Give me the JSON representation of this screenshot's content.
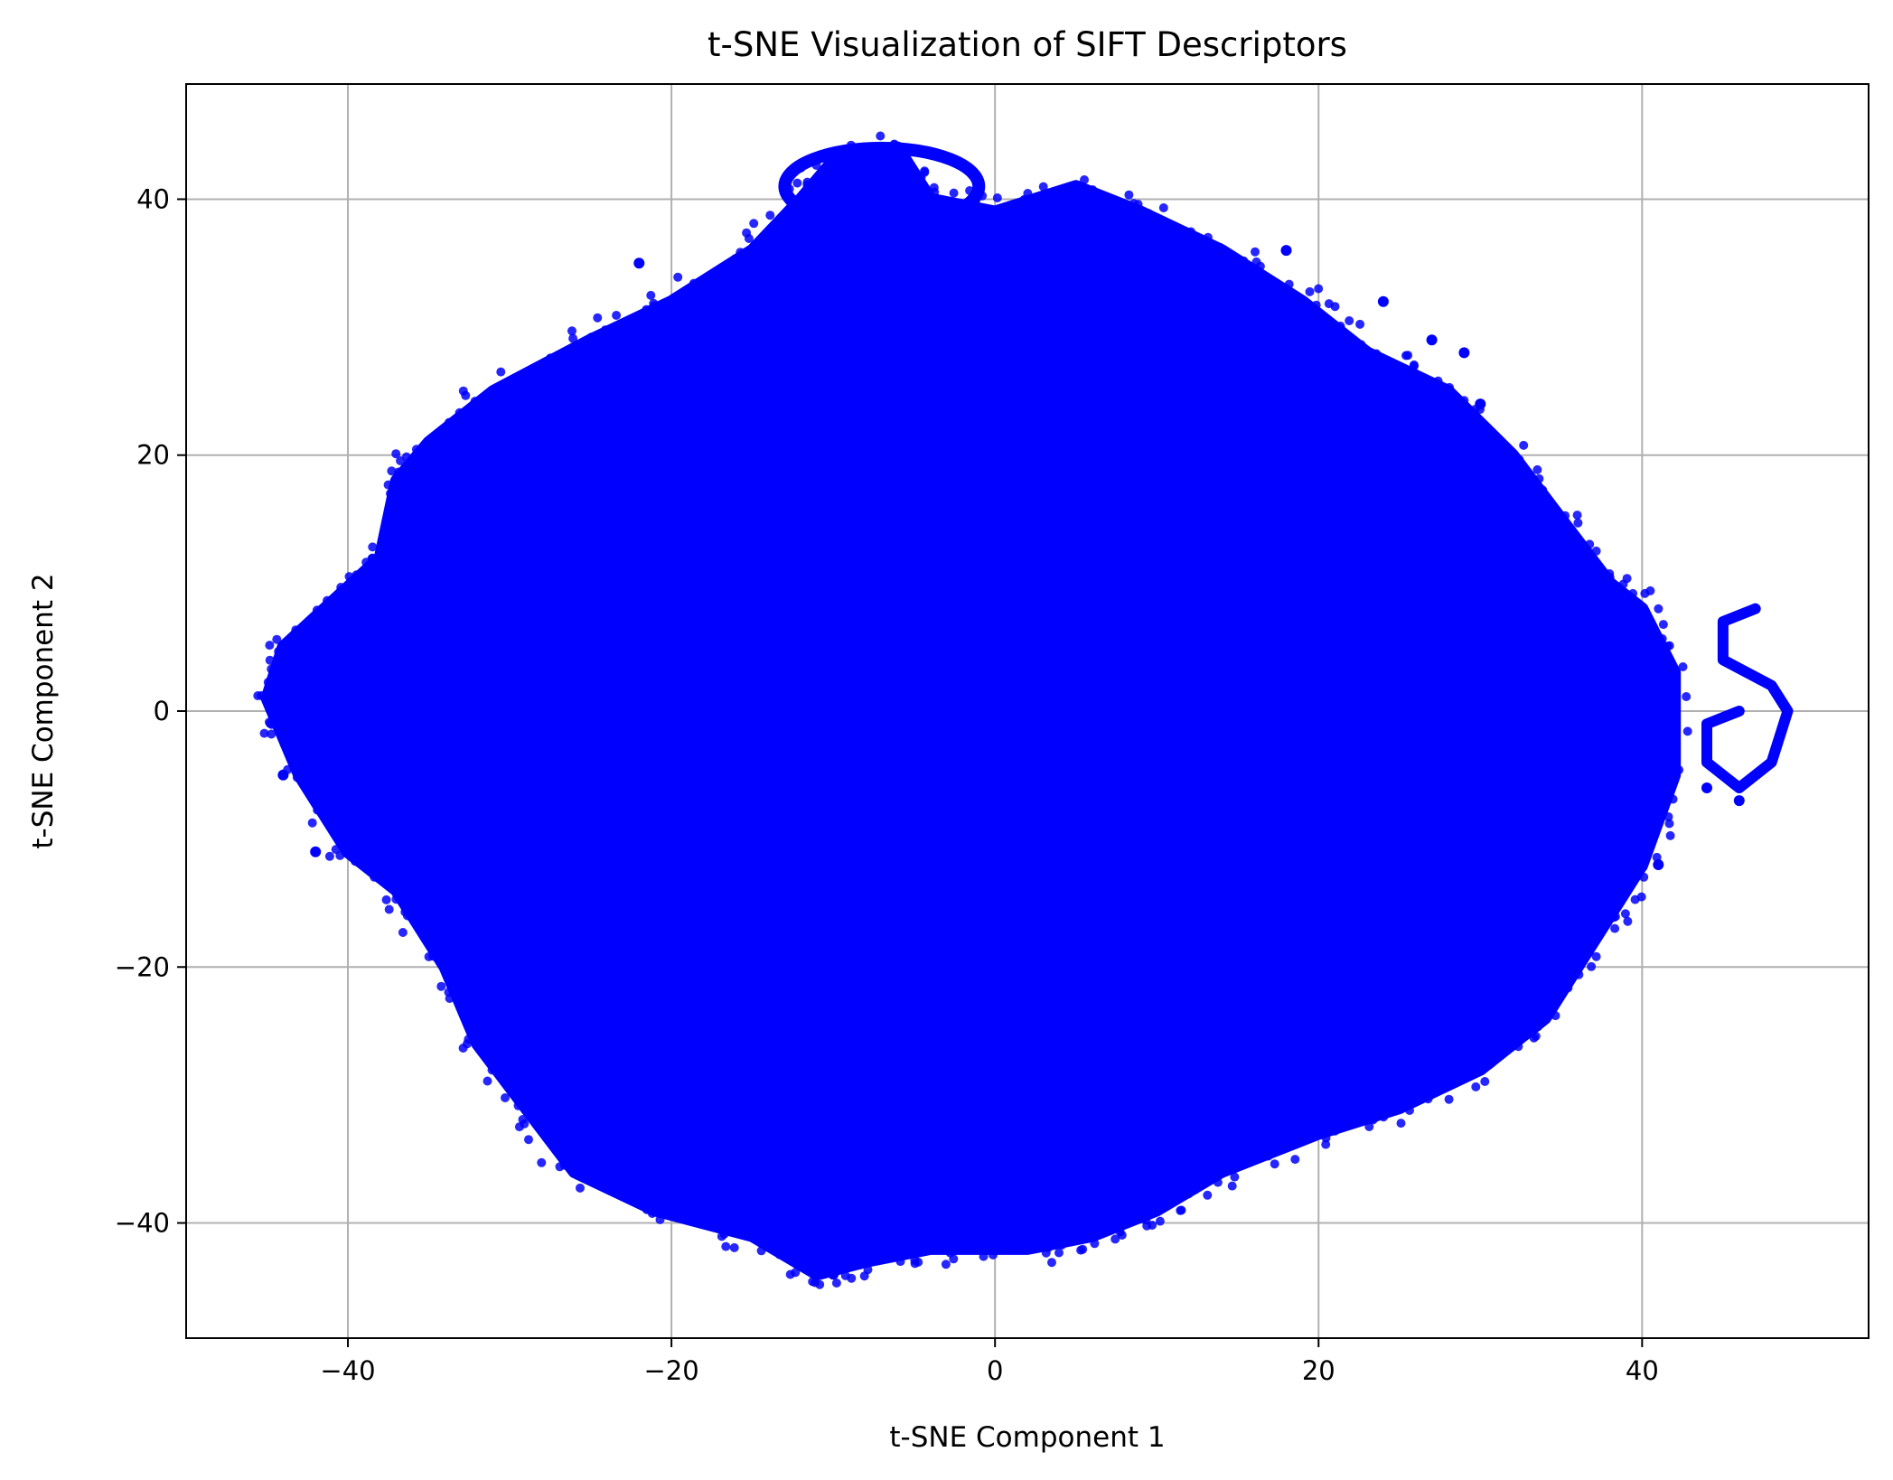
{
  "chart_data": {
    "type": "scatter",
    "title": "t-SNE Visualization of SIFT Descriptors",
    "xlabel": "t-SNE Component 1",
    "ylabel": "t-SNE Component 2",
    "xlim": [
      -50,
      54
    ],
    "ylim": [
      -49,
      49
    ],
    "xticks": [
      -40,
      -20,
      0,
      20,
      40
    ],
    "yticks": [
      -40,
      -20,
      0,
      20,
      40
    ],
    "xtick_labels": [
      "−40",
      "−20",
      "0",
      "20",
      "40"
    ],
    "ytick_labels": [
      "−40",
      "−20",
      "0",
      "20",
      "40"
    ],
    "grid": true,
    "marker_color": "#0000ff",
    "point_cloud": {
      "description_of_shape": "dense roughly elliptical cloud",
      "center": [
        0,
        0
      ],
      "x_range": [
        -45,
        49
      ],
      "y_range": [
        -45,
        45
      ],
      "outline": [
        [
          -45,
          1
        ],
        [
          -44,
          5
        ],
        [
          -38,
          12
        ],
        [
          -37,
          18
        ],
        [
          -35,
          21
        ],
        [
          -31,
          25
        ],
        [
          -25,
          29
        ],
        [
          -20,
          32
        ],
        [
          -15,
          36
        ],
        [
          -12,
          40
        ],
        [
          -10,
          43
        ],
        [
          -6,
          44
        ],
        [
          -4,
          40
        ],
        [
          0,
          39
        ],
        [
          5,
          41
        ],
        [
          9,
          39
        ],
        [
          14,
          36
        ],
        [
          19,
          32
        ],
        [
          23,
          28
        ],
        [
          28,
          25
        ],
        [
          32,
          20
        ],
        [
          35,
          15
        ],
        [
          38,
          10
        ],
        [
          40,
          8
        ],
        [
          42,
          3
        ],
        [
          42,
          -5
        ],
        [
          40,
          -12
        ],
        [
          37,
          -18
        ],
        [
          34,
          -24
        ],
        [
          30,
          -28
        ],
        [
          25,
          -31
        ],
        [
          20,
          -33
        ],
        [
          14,
          -36
        ],
        [
          10,
          -39
        ],
        [
          6,
          -41
        ],
        [
          2,
          -42
        ],
        [
          -4,
          -42
        ],
        [
          -8,
          -43
        ],
        [
          -11,
          -44
        ],
        [
          -15,
          -41
        ],
        [
          -21,
          -39
        ],
        [
          -26,
          -36
        ],
        [
          -29,
          -31
        ],
        [
          -32,
          -26
        ],
        [
          -34,
          -20
        ],
        [
          -37,
          -14
        ],
        [
          -40,
          -11
        ],
        [
          -43,
          -5
        ],
        [
          -45,
          1
        ]
      ],
      "outliers": [
        [
          -45,
          1
        ],
        [
          -44,
          -5
        ],
        [
          -42,
          -11
        ],
        [
          -29,
          -30
        ],
        [
          -22,
          35
        ],
        [
          -8,
          36
        ],
        [
          5,
          41
        ],
        [
          18,
          36
        ],
        [
          24,
          32
        ],
        [
          30,
          24
        ],
        [
          34,
          12
        ],
        [
          38,
          6
        ],
        [
          41,
          -12
        ],
        [
          38,
          -8
        ],
        [
          16,
          -34
        ],
        [
          -3,
          -42
        ],
        [
          -10,
          -44
        ],
        [
          -24,
          -36
        ],
        [
          -36,
          -14
        ],
        [
          -39,
          -7
        ],
        [
          44,
          -6
        ],
        [
          46,
          -7
        ],
        [
          29,
          28
        ],
        [
          27,
          29
        ]
      ],
      "loops": [
        {
          "label": "upper loop",
          "center": [
            -7,
            41
          ],
          "rx": 6,
          "ry": 3
        },
        {
          "label": "right S-curve",
          "points": [
            [
              47,
              8
            ],
            [
              45,
              7
            ],
            [
              45,
              4
            ],
            [
              48,
              2
            ],
            [
              49,
              0
            ],
            [
              48,
              -4
            ],
            [
              46,
              -6
            ],
            [
              44,
              -4
            ],
            [
              44,
              -1
            ],
            [
              46,
              0
            ]
          ]
        }
      ]
    }
  }
}
